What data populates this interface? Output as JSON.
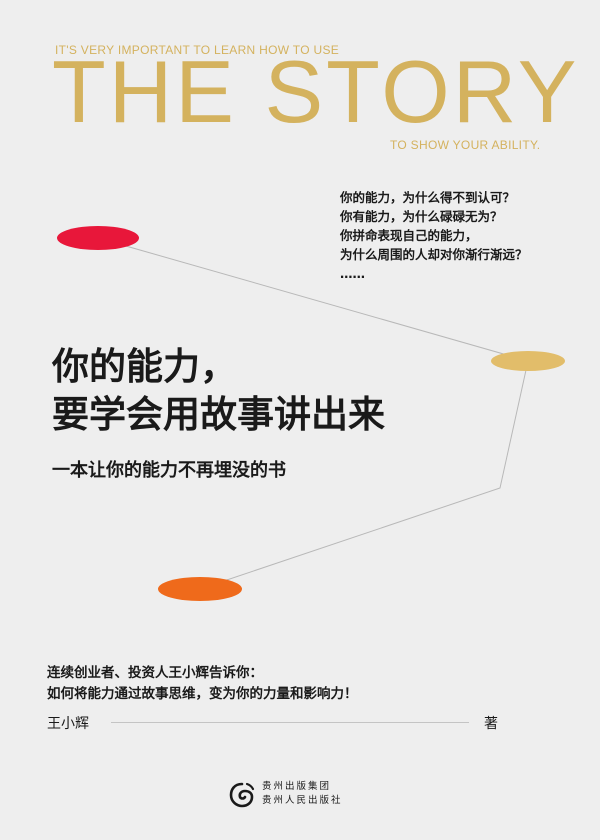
{
  "cover": {
    "eng_top": "IT'S VERY IMPORTANT TO LEARN HOW TO USE",
    "eng_title": "THE STORY",
    "eng_bottom": "TO SHOW YOUR ABILITY.",
    "questions": [
      "你的能力，为什么得不到认可？",
      "你有能力，为什么碌碌无为？",
      "你拼命表现自己的能力，",
      "为什么周围的人却对你渐行渐远？",
      "……"
    ],
    "title_line1": "你的能力，",
    "title_line2": "要学会用故事讲出来",
    "subtitle": "一本让你的能力不再埋没的书",
    "blurb_line1": "连续创业者、投资人王小辉告诉你：",
    "blurb_line2": "如何将能力通过故事思维，变为你的力量和影响力！",
    "author": "王小辉",
    "author_role": "著",
    "publisher_line1": "贵州出版集团",
    "publisher_line2": "贵州人民出版社"
  },
  "colors": {
    "background": "#eeeeee",
    "gold": "#d4b25e",
    "red_dot": "#e8173a",
    "yellow_dot": "#e2bd6a",
    "orange_dot": "#ef6a1b",
    "text": "#1a1a1a"
  }
}
